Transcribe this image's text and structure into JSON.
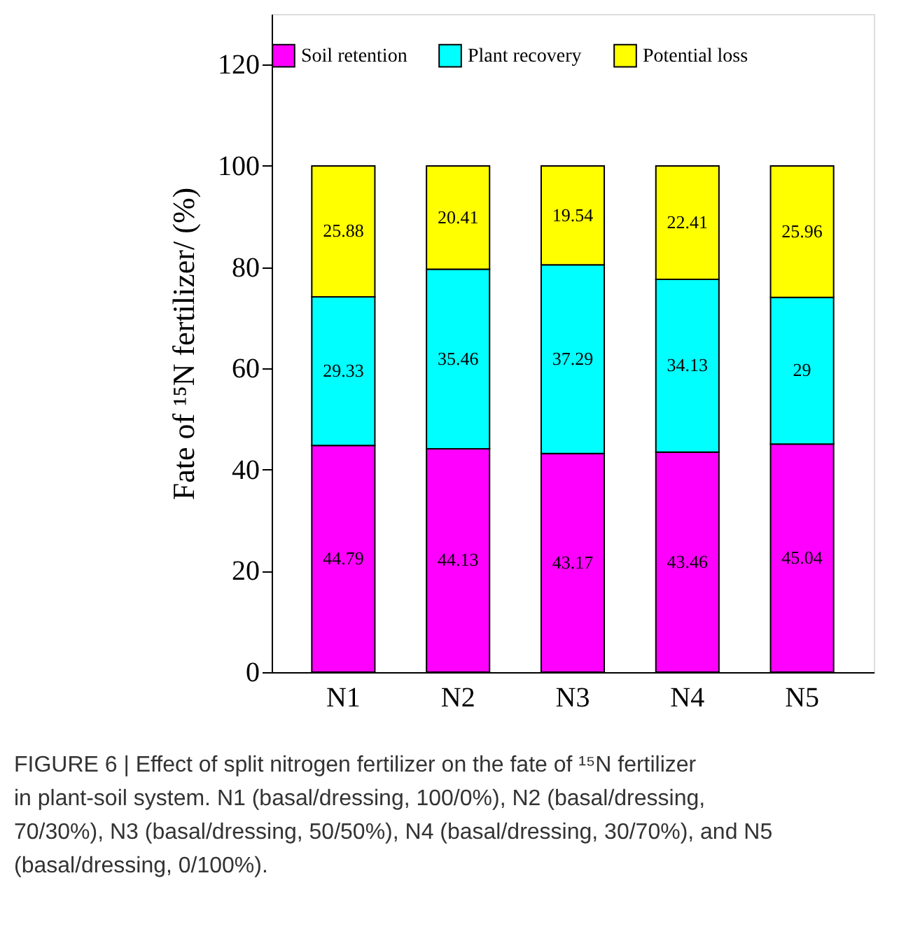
{
  "chart_data": {
    "type": "bar",
    "stacked": true,
    "categories": [
      "N1",
      "N2",
      "N3",
      "N4",
      "N5"
    ],
    "series": [
      {
        "name": "Soil retention",
        "color": "#ff00ff",
        "values": [
          44.79,
          44.13,
          43.17,
          43.46,
          45.04
        ]
      },
      {
        "name": "Plant recovery",
        "color": "#00ffff",
        "values": [
          29.33,
          35.46,
          37.29,
          34.13,
          29
        ]
      },
      {
        "name": "Potential loss",
        "color": "#ffff00",
        "values": [
          25.88,
          20.41,
          19.54,
          22.41,
          25.96
        ]
      }
    ],
    "ylabel": "Fate of ¹⁵N fertilizer/ (%)",
    "ylim": [
      0,
      130
    ],
    "yticks": [
      0,
      20,
      40,
      60,
      80,
      100,
      120
    ],
    "data_labels": true,
    "legend": "top",
    "grid": false,
    "annotations": [
      "FIGURE 6 | Effect of split nitrogen fertilizer on the fate of ¹⁵N fertilizer in plant-soil system. N1 (basal/dressing, 100/0%), N2 (basal/dressing, 70/30%), N3 (basal/dressing, 50/50%), N4 (basal/dressing, 30/70%), and N5 (basal/dressing, 0/100%)."
    ]
  }
}
